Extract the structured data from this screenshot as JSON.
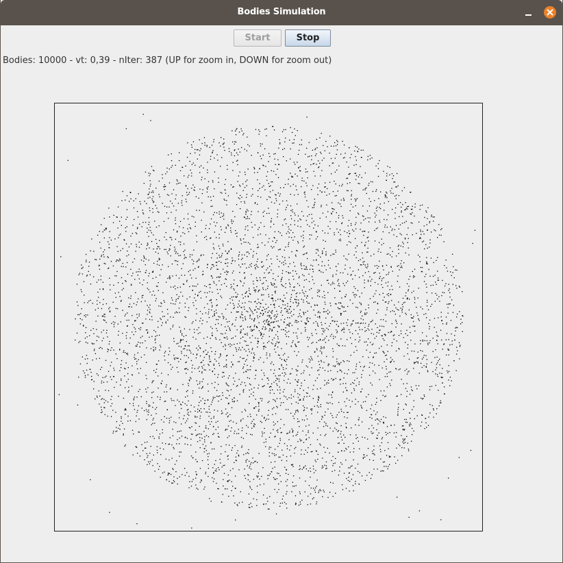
{
  "window": {
    "title": "Bodies Simulation",
    "controls": [
      "minimize-icon",
      "close-icon"
    ],
    "close_color": "#e9822c",
    "titlebar_color": "#59524c"
  },
  "toolbar": {
    "start_label": "Start",
    "start_enabled": false,
    "stop_label": "Stop",
    "stop_enabled": true
  },
  "status": {
    "text": "Bodies: 10000 - vt: 0,39 - nIter: 387 (UP for zoom in, DOWN for zoom out)"
  },
  "simulation": {
    "bodies": 10000,
    "vt": "0,39",
    "n_iter": 387,
    "body_color": "#000000"
  }
}
